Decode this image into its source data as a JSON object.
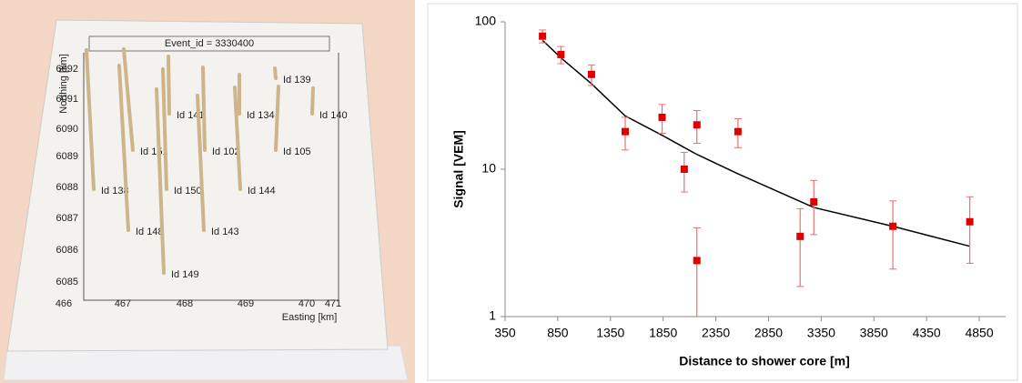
{
  "photo_model": {
    "title": "Event_id = 3330400",
    "y_label": "Northing [km]",
    "x_label": "Easting [km]",
    "y_ticks": [
      6092,
      6091,
      6090,
      6089,
      6088,
      6087,
      6086,
      6085
    ],
    "x_ticks": [
      466,
      467,
      468,
      469,
      470,
      471
    ],
    "stations": [
      "Id 139",
      "Id 140",
      "Id 141",
      "Id 134",
      "Id 151",
      "Id 102",
      "Id 105",
      "Id 138",
      "Id 150",
      "Id 144",
      "Id 148",
      "Id 143",
      "Id 149"
    ]
  },
  "chart_data": {
    "type": "scatter",
    "x_label": "Distance to shower core [m]",
    "y_label": "Signal [VEM]",
    "xlim": [
      350,
      5100
    ],
    "xticks": [
      350,
      850,
      1350,
      1850,
      2350,
      2850,
      3350,
      3850,
      4350,
      4850
    ],
    "ylim": [
      1,
      100
    ],
    "yticks": [
      1,
      10,
      100
    ],
    "log_y": true,
    "series": [
      {
        "color": "#e00000",
        "error_color": "#e87070",
        "x": [
          705,
          880,
          1170,
          1490,
          1840,
          2170,
          2050,
          2170,
          2560,
          3150,
          3280,
          4030,
          4760
        ],
        "values": [
          80,
          60,
          44,
          18,
          22.5,
          20,
          10,
          2.4,
          18,
          3.5,
          6,
          4.1,
          4.4
        ],
        "errors": [
          8,
          8,
          7,
          4.5,
          5,
          5,
          3,
          1.6,
          4,
          1.9,
          2.4,
          2,
          2.1
        ]
      },
      {
        "color": "#000000",
        "x": [
          705,
          880,
          1170,
          1490,
          1840,
          2170,
          2560,
          3280,
          4030,
          4760
        ],
        "values": [
          75,
          57,
          38,
          23,
          17,
          12.6,
          9.3,
          5.5,
          4.1,
          3.0
        ]
      }
    ]
  }
}
